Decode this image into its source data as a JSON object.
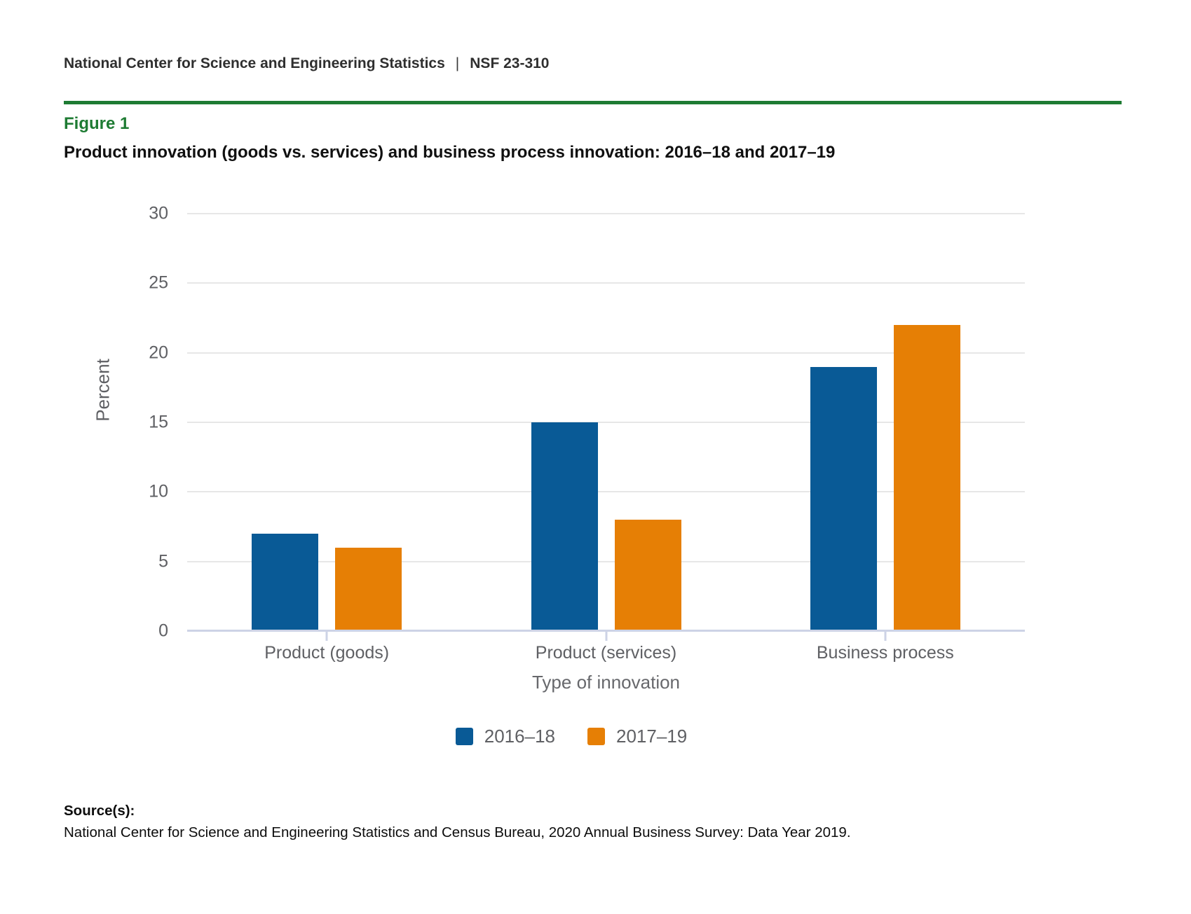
{
  "header": {
    "org": "National Center for Science and Engineering Statistics",
    "separator": "|",
    "report_number": "NSF 23-310"
  },
  "figure": {
    "label": "Figure 1",
    "title": "Product innovation (goods vs. services) and business process innovation: 2016–18 and 2017–19"
  },
  "chart_data": {
    "type": "bar",
    "title": "Product innovation (goods vs. services) and business process innovation: 2016–18 and 2017–19",
    "categories": [
      "Product (goods)",
      "Product (services)",
      "Business process"
    ],
    "series": [
      {
        "name": "2016–18",
        "color": "#095a96",
        "values": [
          7,
          15,
          19
        ]
      },
      {
        "name": "2017–19",
        "color": "#e67f05",
        "values": [
          6,
          8,
          22
        ]
      }
    ],
    "xlabel": "Type of innovation",
    "ylabel": "Percent",
    "ylim": [
      0,
      30
    ],
    "yticks": [
      0,
      5,
      10,
      15,
      20,
      25,
      30
    ],
    "grid": true,
    "legend_position": "bottom"
  },
  "source": {
    "label": "Source(s):",
    "text": "National Center for Science and Engineering Statistics and Census Bureau, 2020 Annual Business Survey: Data Year 2019."
  },
  "colors": {
    "accent_green": "#1e7b33",
    "series_2016_18": "#095a96",
    "series_2017_19": "#e67f05",
    "gridline": "#e7e7e7",
    "axis_line": "#cdd3e6",
    "axis_text": "#5f6064"
  }
}
